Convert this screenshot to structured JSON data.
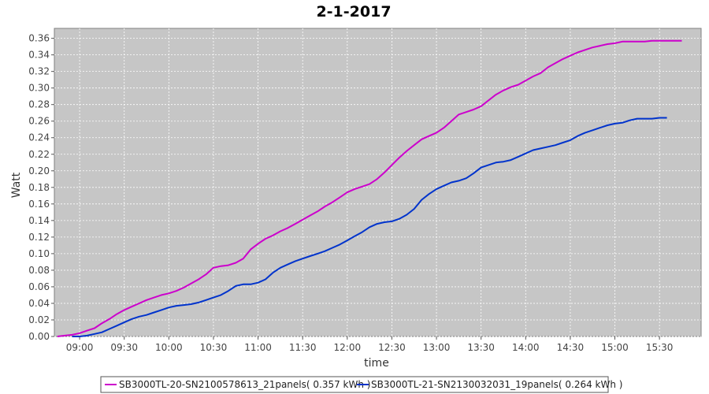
{
  "chart_data": {
    "type": "line",
    "title": "2-1-2017",
    "xlabel": "time",
    "ylabel": "Watt",
    "x_tick_labels": [
      "09:00",
      "09:30",
      "10:00",
      "10:30",
      "11:00",
      "11:30",
      "12:00",
      "12:30",
      "13:00",
      "13:30",
      "14:00",
      "14:30",
      "15:00",
      "15:30"
    ],
    "y_ticks": [
      0.0,
      0.02,
      0.04,
      0.06,
      0.08,
      0.1,
      0.12,
      0.14,
      0.16,
      0.18,
      0.2,
      0.22,
      0.24,
      0.26,
      0.28,
      0.3,
      0.32,
      0.34,
      0.36
    ],
    "y_tick_labels": [
      "0.00",
      "0.02",
      "0.04",
      "0.06",
      "0.08",
      "0.10",
      "0.12",
      "0.14",
      "0.16",
      "0.18",
      "0.20",
      "0.22",
      "0.24",
      "0.26",
      "0.28",
      "0.30",
      "0.32",
      "0.34",
      "0.36"
    ],
    "xlim": [
      "08:43",
      "15:58"
    ],
    "ylim": [
      0,
      0.372
    ],
    "grid": true,
    "legend_position": "bottom",
    "series": [
      {
        "name": "SB3000TL-20-SN2100578613_21panels( 0.357 kWh )",
        "color": "#cc00cc",
        "x": [
          "08:45",
          "08:50",
          "08:55",
          "09:00",
          "09:05",
          "09:10",
          "09:15",
          "09:20",
          "09:25",
          "09:30",
          "09:35",
          "09:40",
          "09:45",
          "09:50",
          "09:55",
          "10:00",
          "10:05",
          "10:10",
          "10:15",
          "10:20",
          "10:25",
          "10:30",
          "10:35",
          "10:40",
          "10:45",
          "10:50",
          "10:55",
          "11:00",
          "11:05",
          "11:10",
          "11:15",
          "11:20",
          "11:25",
          "11:30",
          "11:35",
          "11:40",
          "11:45",
          "11:50",
          "11:55",
          "12:00",
          "12:05",
          "12:10",
          "12:15",
          "12:20",
          "12:25",
          "12:30",
          "12:35",
          "12:40",
          "12:45",
          "12:50",
          "12:55",
          "13:00",
          "13:05",
          "13:10",
          "13:15",
          "13:20",
          "13:25",
          "13:30",
          "13:35",
          "13:40",
          "13:45",
          "13:50",
          "13:55",
          "14:00",
          "14:05",
          "14:10",
          "14:15",
          "14:20",
          "14:25",
          "14:30",
          "14:35",
          "14:40",
          "14:45",
          "14:50",
          "14:55",
          "15:00",
          "15:05",
          "15:10",
          "15:15",
          "15:20",
          "15:25",
          "15:30",
          "15:35",
          "15:40",
          "15:45"
        ],
        "y": [
          0.0,
          0.001,
          0.002,
          0.004,
          0.007,
          0.01,
          0.016,
          0.021,
          0.027,
          0.032,
          0.036,
          0.04,
          0.044,
          0.047,
          0.05,
          0.052,
          0.055,
          0.059,
          0.064,
          0.069,
          0.075,
          0.083,
          0.085,
          0.086,
          0.089,
          0.094,
          0.105,
          0.112,
          0.118,
          0.122,
          0.127,
          0.131,
          0.136,
          0.141,
          0.146,
          0.151,
          0.157,
          0.162,
          0.168,
          0.174,
          0.178,
          0.181,
          0.184,
          0.19,
          0.198,
          0.207,
          0.216,
          0.224,
          0.231,
          0.238,
          0.242,
          0.246,
          0.252,
          0.26,
          0.268,
          0.271,
          0.274,
          0.278,
          0.285,
          0.292,
          0.297,
          0.301,
          0.304,
          0.309,
          0.314,
          0.318,
          0.325,
          0.33,
          0.335,
          0.339,
          0.343,
          0.346,
          0.349,
          0.351,
          0.353,
          0.354,
          0.356,
          0.356,
          0.356,
          0.356,
          0.357,
          0.357,
          0.357,
          0.357,
          0.357
        ]
      },
      {
        "name": "SB3000TL-21-SN2130032031_19panels( 0.264 kWh )",
        "color": "#0033cc",
        "x": [
          "08:55",
          "09:00",
          "09:05",
          "09:10",
          "09:15",
          "09:20",
          "09:25",
          "09:30",
          "09:35",
          "09:40",
          "09:45",
          "09:50",
          "09:55",
          "10:00",
          "10:05",
          "10:10",
          "10:15",
          "10:20",
          "10:25",
          "10:30",
          "10:35",
          "10:40",
          "10:45",
          "10:50",
          "10:55",
          "11:00",
          "11:05",
          "11:10",
          "11:15",
          "11:20",
          "11:25",
          "11:30",
          "11:35",
          "11:40",
          "11:45",
          "11:50",
          "11:55",
          "12:00",
          "12:05",
          "12:10",
          "12:15",
          "12:20",
          "12:25",
          "12:30",
          "12:35",
          "12:40",
          "12:45",
          "12:50",
          "12:55",
          "13:00",
          "13:05",
          "13:10",
          "13:15",
          "13:20",
          "13:25",
          "13:30",
          "13:35",
          "13:40",
          "13:45",
          "13:50",
          "13:55",
          "14:00",
          "14:05",
          "14:10",
          "14:15",
          "14:20",
          "14:25",
          "14:30",
          "14:35",
          "14:40",
          "14:45",
          "14:50",
          "14:55",
          "15:00",
          "15:05",
          "15:10",
          "15:15",
          "15:20",
          "15:25",
          "15:30",
          "15:35"
        ],
        "y": [
          0.0,
          0.0,
          0.001,
          0.003,
          0.005,
          0.009,
          0.013,
          0.017,
          0.021,
          0.024,
          0.026,
          0.029,
          0.032,
          0.035,
          0.037,
          0.038,
          0.039,
          0.041,
          0.044,
          0.047,
          0.05,
          0.055,
          0.061,
          0.063,
          0.063,
          0.065,
          0.069,
          0.077,
          0.083,
          0.087,
          0.091,
          0.094,
          0.097,
          0.1,
          0.103,
          0.107,
          0.111,
          0.116,
          0.121,
          0.126,
          0.132,
          0.136,
          0.138,
          0.139,
          0.142,
          0.147,
          0.154,
          0.165,
          0.172,
          0.178,
          0.182,
          0.186,
          0.188,
          0.191,
          0.197,
          0.204,
          0.207,
          0.21,
          0.211,
          0.213,
          0.217,
          0.221,
          0.225,
          0.227,
          0.229,
          0.231,
          0.234,
          0.237,
          0.242,
          0.246,
          0.249,
          0.252,
          0.255,
          0.257,
          0.258,
          0.261,
          0.263,
          0.263,
          0.263,
          0.264,
          0.264
        ]
      }
    ]
  }
}
